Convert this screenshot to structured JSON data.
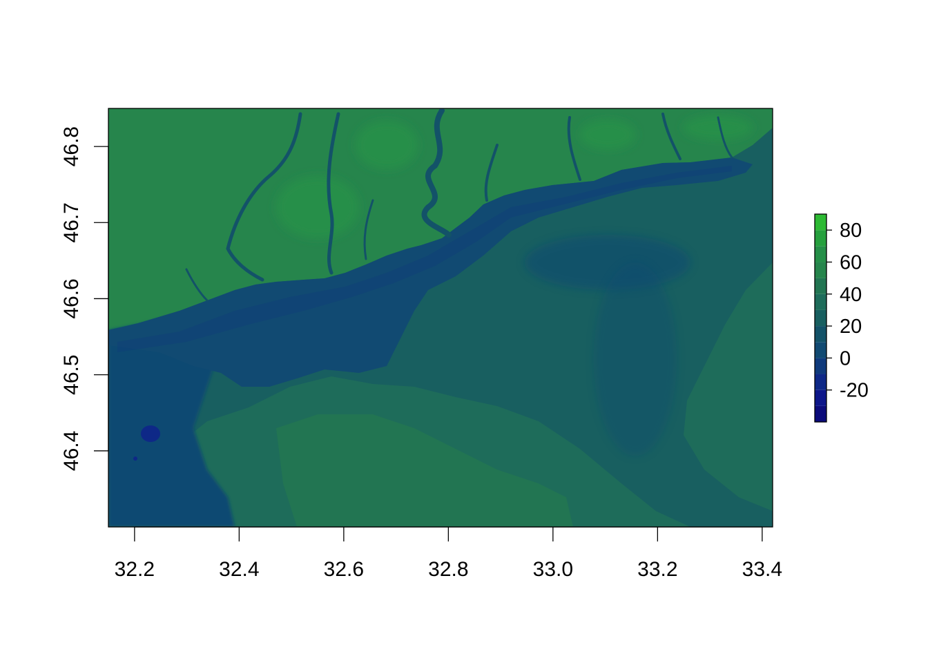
{
  "chart_data": {
    "type": "heatmap",
    "subtype": "raster-map",
    "title": "",
    "xlabel": "",
    "ylabel": "",
    "x_ticks": [
      "32.2",
      "32.4",
      "32.6",
      "32.8",
      "33.0",
      "33.2",
      "33.4"
    ],
    "x_tick_values": [
      32.2,
      32.4,
      32.6,
      32.8,
      33.0,
      33.2,
      33.4
    ],
    "y_ticks": [
      "46.4",
      "46.5",
      "46.6",
      "46.7",
      "46.8"
    ],
    "y_tick_values": [
      46.4,
      46.5,
      46.6,
      46.7,
      46.8
    ],
    "xlim": [
      32.15,
      33.42
    ],
    "ylim": [
      46.3,
      46.85
    ],
    "legend": {
      "placement": "right",
      "tick_labels": [
        "80",
        "60",
        "40",
        "20",
        "0",
        "-20"
      ],
      "tick_values": [
        80,
        60,
        40,
        20,
        0,
        -20
      ],
      "range": [
        -40,
        90
      ],
      "breaks": [
        -40,
        -30,
        -20,
        -10,
        0,
        10,
        20,
        30,
        40,
        50,
        60,
        70,
        80,
        90
      ],
      "colors": [
        "#0b0b7a",
        "#0d168a",
        "#0e2887",
        "#0f3a7c",
        "#114a72",
        "#135268",
        "#185f60",
        "#1e6c5a",
        "#227552",
        "#26854c",
        "#258f48",
        "#26a03e",
        "#2dba33"
      ]
    },
    "regions": {
      "land_north": 50,
      "river_channel": 10,
      "river_center": 5,
      "floodplain_east": 25,
      "southern_uplands": 38,
      "southwest_low": 5,
      "southwest_depression": -30
    }
  }
}
